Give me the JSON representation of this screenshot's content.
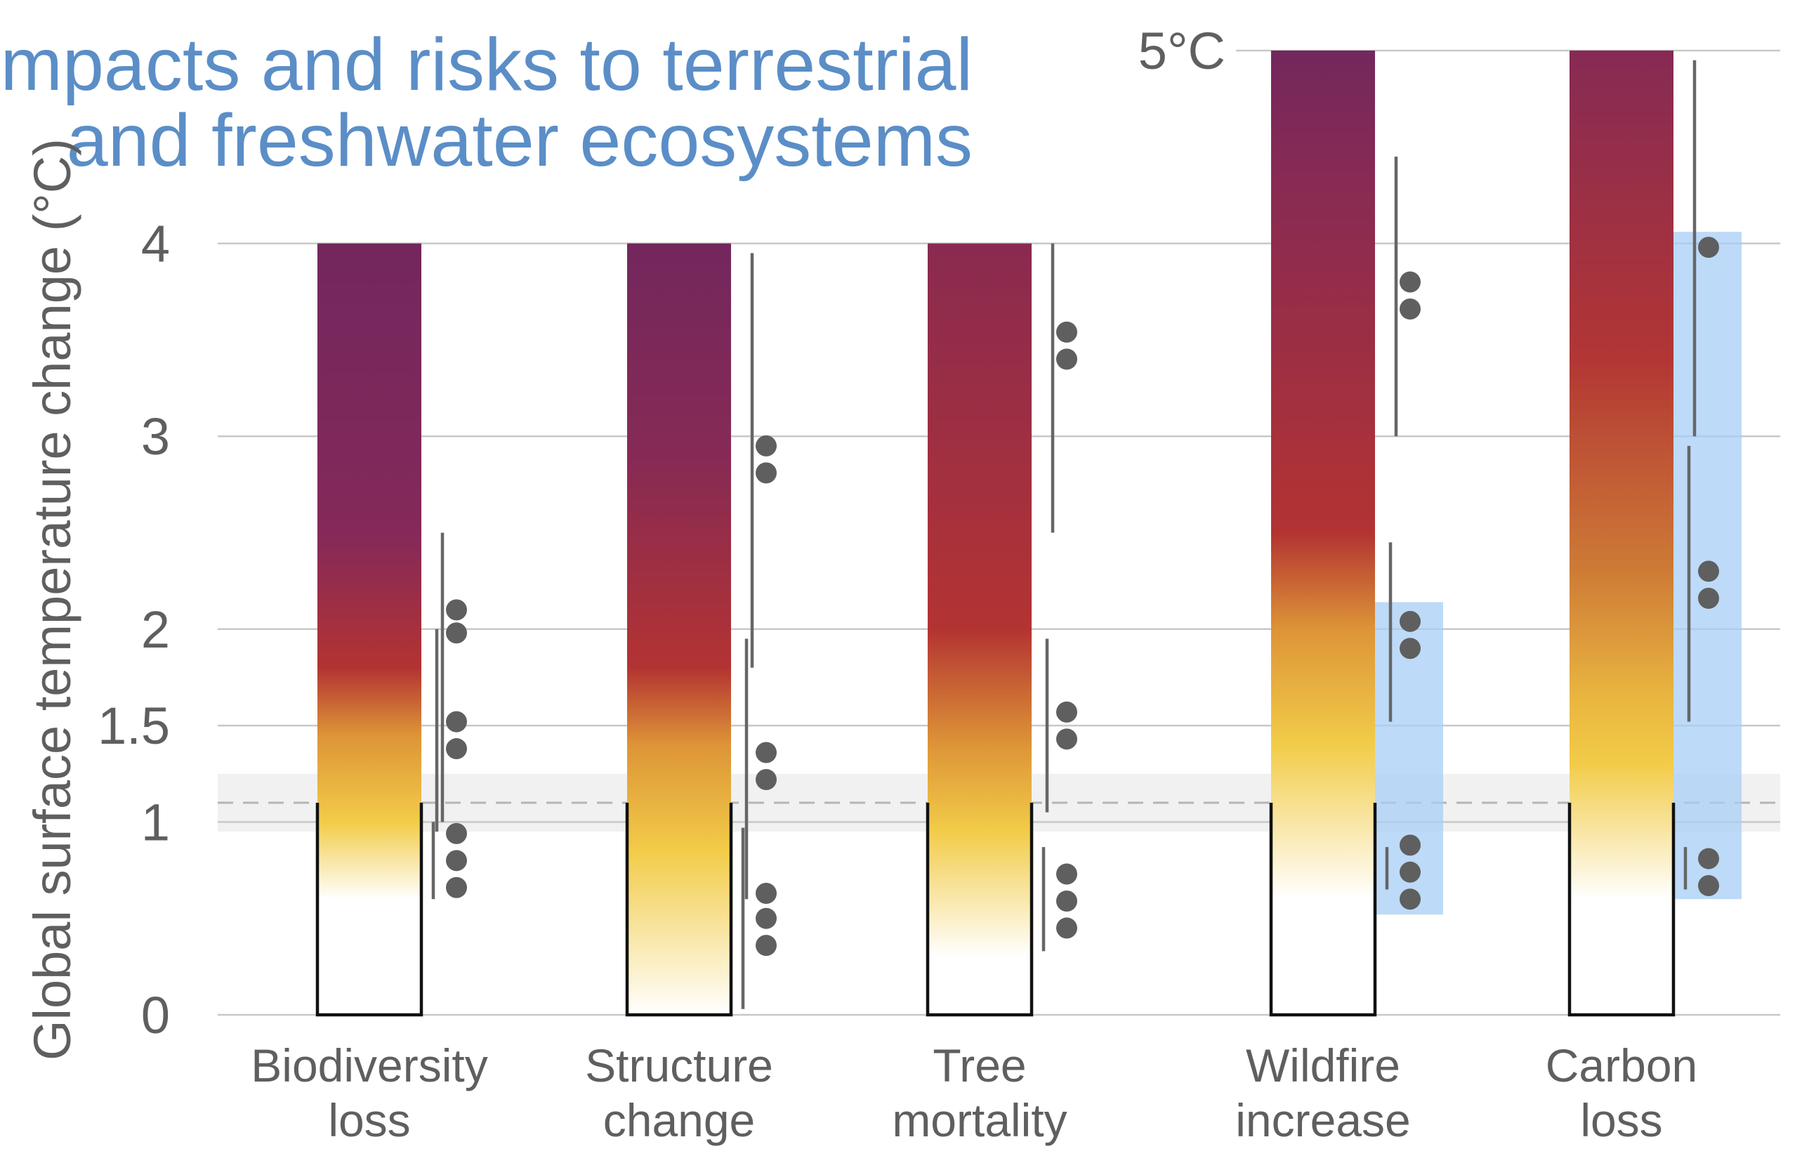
{
  "title": {
    "line1": "(c) Impacts and risks to terrestrial",
    "line2": "and freshwater ecosystems"
  },
  "chart_data": {
    "type": "bar",
    "ylabel": "Global surface temperature change (°C)",
    "yticks": [
      {
        "value": 0,
        "label": "0"
      },
      {
        "value": 1,
        "label": "1"
      },
      {
        "value": 1.5,
        "label": "1.5"
      },
      {
        "value": 2,
        "label": "2"
      },
      {
        "value": 3,
        "label": "3"
      },
      {
        "value": 4,
        "label": "4"
      },
      {
        "value": 5,
        "label": "5°C"
      }
    ],
    "ylim": [
      0,
      5
    ],
    "observed_warming": {
      "value": 1.1,
      "range": [
        0.95,
        1.25
      ]
    },
    "categories": [
      {
        "label_line1": "Biodiversity",
        "label_line2": "loss",
        "top": 4,
        "color_stops": [
          [
            0.6,
            "#ffffff"
          ],
          [
            1.0,
            "#f2cc49"
          ],
          [
            1.45,
            "#dd9437"
          ],
          [
            1.8,
            "#b33332"
          ],
          [
            2.5,
            "#84295a"
          ],
          [
            4.0,
            "#73275d"
          ]
        ],
        "confidence_segments": [
          [
            1.0,
            2.5
          ],
          [
            0.95,
            2.0
          ],
          [
            0.6,
            1.0
          ]
        ],
        "dots": [
          2.1,
          1.98,
          1.52,
          1.38,
          0.94,
          0.8,
          0.66
        ],
        "confidence_box": null
      },
      {
        "label_line1": "Structure",
        "label_line2": "change",
        "top": 4,
        "color_stops": [
          [
            0.0,
            "#ffffff"
          ],
          [
            0.85,
            "#f2cc49"
          ],
          [
            1.4,
            "#dd9437"
          ],
          [
            1.8,
            "#b33332"
          ],
          [
            2.9,
            "#862a55"
          ],
          [
            4.0,
            "#73275d"
          ]
        ],
        "confidence_segments": [
          [
            1.8,
            3.95
          ],
          [
            0.6,
            1.95
          ],
          [
            0.03,
            0.97
          ]
        ],
        "dots": [
          2.95,
          2.81,
          1.36,
          1.22,
          0.63,
          0.5,
          0.36
        ],
        "confidence_box": null
      },
      {
        "label_line1": "Tree",
        "label_line2": "mortality",
        "top": 4,
        "color_stops": [
          [
            0.3,
            "#ffffff"
          ],
          [
            0.95,
            "#f2cc49"
          ],
          [
            1.4,
            "#dd9437"
          ],
          [
            2.0,
            "#b33332"
          ],
          [
            3.2,
            "#9a2e45"
          ],
          [
            4.0,
            "#8a2a50"
          ]
        ],
        "confidence_segments": [
          [
            2.5,
            4.0
          ],
          [
            1.05,
            1.95
          ],
          [
            0.33,
            0.87
          ]
        ],
        "dots": [
          3.54,
          3.4,
          1.57,
          1.43,
          0.73,
          0.59,
          0.45
        ],
        "confidence_box": null
      },
      {
        "label_line1": "Wildfire",
        "label_line2": "increase",
        "top": 5,
        "color_stops": [
          [
            0.6,
            "#ffffff"
          ],
          [
            1.4,
            "#f2cc49"
          ],
          [
            2.0,
            "#dd9437"
          ],
          [
            2.5,
            "#b33332"
          ],
          [
            4.4,
            "#862a55"
          ],
          [
            5.0,
            "#73275d"
          ]
        ],
        "confidence_segments": [
          [
            3.0,
            4.45
          ],
          [
            1.52,
            2.45
          ],
          [
            0.65,
            0.87
          ]
        ],
        "dots": [
          3.8,
          3.66,
          2.04,
          1.9,
          0.88,
          0.74,
          0.6
        ],
        "confidence_box": [
          0.52,
          2.14
        ]
      },
      {
        "label_line1": "Carbon",
        "label_line2": "loss",
        "top": 5,
        "color_stops": [
          [
            0.6,
            "#ffffff"
          ],
          [
            1.3,
            "#f2cc49"
          ],
          [
            1.65,
            "#e9b540"
          ],
          [
            2.3,
            "#ce7b36"
          ],
          [
            3.4,
            "#b23634"
          ],
          [
            5.0,
            "#862a55"
          ]
        ],
        "confidence_segments": [
          [
            3.0,
            4.95
          ],
          [
            1.52,
            2.95
          ],
          [
            0.65,
            0.87
          ]
        ],
        "dots": [
          3.98,
          2.3,
          2.16,
          0.81,
          0.67
        ],
        "confidence_box": [
          0.6,
          4.06
        ]
      }
    ]
  }
}
